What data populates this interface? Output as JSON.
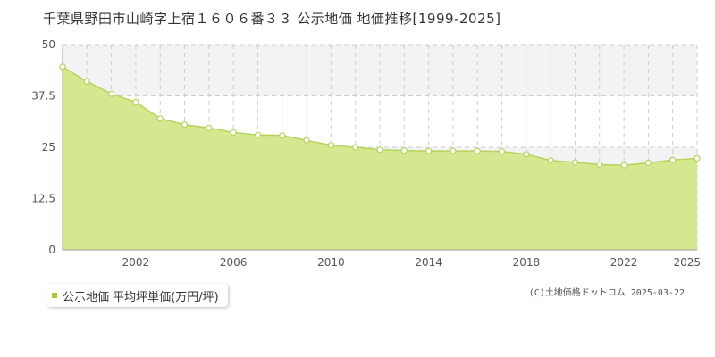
{
  "title": "千葉県野田市山崎字上宿１６０６番３３ 公示地価 地価推移[1999-2025]",
  "legend": {
    "label": "公示地価 平均坪単価(万円/坪)"
  },
  "copyright": "(C)土地価格ドットコム 2025-03-22",
  "colors": {
    "fill": "#d6e88f",
    "line": "#b5d35a",
    "marker_fill": "#ffffff",
    "marker_stroke": "#b5d35a",
    "grid": "#cccccc",
    "band": "#f3f3f6",
    "axis": "#999999",
    "legend_swatch": "#a0c93a"
  },
  "chart_data": {
    "type": "area",
    "title": "",
    "xlabel": "",
    "ylabel": "",
    "x": [
      1999,
      2000,
      2001,
      2002,
      2003,
      2004,
      2005,
      2006,
      2007,
      2008,
      2009,
      2010,
      2011,
      2012,
      2013,
      2014,
      2015,
      2016,
      2017,
      2018,
      2019,
      2020,
      2021,
      2022,
      2023,
      2024,
      2025
    ],
    "series": [
      {
        "name": "公示地価 平均坪単価(万円/坪)",
        "values": [
          44.6,
          41.0,
          38.0,
          36.0,
          32.0,
          30.5,
          29.7,
          28.6,
          28.0,
          27.9,
          26.7,
          25.5,
          25.0,
          24.4,
          24.2,
          24.1,
          24.1,
          24.1,
          24.0,
          23.3,
          21.8,
          21.3,
          20.8,
          20.6,
          21.2,
          21.9,
          22.3
        ]
      }
    ],
    "ylim": [
      0,
      50
    ],
    "xlim": [
      1999,
      2025
    ],
    "yticks": [
      "0",
      "12.5",
      "25",
      "37.5",
      "50"
    ],
    "ytick_values": [
      0,
      12.5,
      25,
      37.5,
      50
    ],
    "xticks": [
      "2002",
      "2006",
      "2010",
      "2014",
      "2018",
      "2022",
      "2025"
    ],
    "xtick_values": [
      2002,
      2006,
      2010,
      2014,
      2018,
      2022,
      2025
    ],
    "grid": true,
    "legend_position": "bottom-left"
  }
}
